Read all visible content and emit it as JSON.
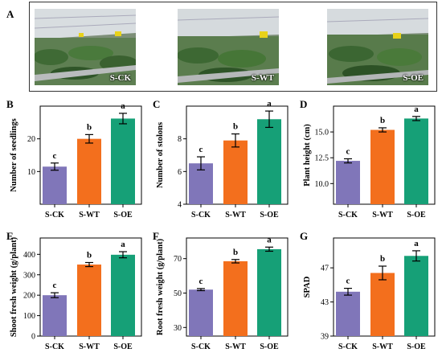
{
  "panel_a": {
    "letter": "A",
    "photos": [
      {
        "label": "S-CK"
      },
      {
        "label": "S-WT"
      },
      {
        "label": "S-OE"
      }
    ]
  },
  "colors": {
    "S-CK": "#8076b9",
    "S-WT": "#f36f1d",
    "S-OE": "#16a077"
  },
  "chart_data": [
    {
      "panel": "B",
      "type": "bar",
      "categories": [
        "S-CK",
        "S-WT",
        "S-OE"
      ],
      "values": [
        11.5,
        20.0,
        26.2
      ],
      "errors": [
        1.1,
        1.3,
        1.6
      ],
      "letters": [
        "c",
        "b",
        "a"
      ],
      "ylabel": "Number of seedlings",
      "ylim": [
        0,
        30
      ],
      "yticks": [
        10,
        20
      ]
    },
    {
      "panel": "C",
      "type": "bar",
      "categories": [
        "S-CK",
        "S-WT",
        "S-OE"
      ],
      "values": [
        6.5,
        7.9,
        9.2
      ],
      "errors": [
        0.4,
        0.4,
        0.5
      ],
      "letters": [
        "c",
        "b",
        "a"
      ],
      "ylabel": "Number of stolons",
      "ylim": [
        4,
        10
      ],
      "yticks": [
        4,
        6,
        8
      ]
    },
    {
      "panel": "D",
      "type": "bar",
      "categories": [
        "S-CK",
        "S-WT",
        "S-OE"
      ],
      "values": [
        12.2,
        15.2,
        16.3
      ],
      "errors": [
        0.2,
        0.2,
        0.2
      ],
      "letters": [
        "c",
        "b",
        "a"
      ],
      "ylabel": "Plant height (cm)",
      "ylim": [
        8,
        17.5
      ],
      "yticks": [
        "10.0",
        "12.5",
        "15.0"
      ]
    },
    {
      "panel": "E",
      "type": "bar",
      "categories": [
        "S-CK",
        "S-WT",
        "S-OE"
      ],
      "values": [
        200,
        350,
        398
      ],
      "errors": [
        12,
        10,
        15
      ],
      "letters": [
        "c",
        "b",
        "a"
      ],
      "ylabel": "Shoot fresh weight (g/plant)",
      "ylim": [
        0,
        480
      ],
      "yticks": [
        0,
        100,
        200,
        300,
        400
      ]
    },
    {
      "panel": "F",
      "type": "bar",
      "categories": [
        "S-CK",
        "S-WT",
        "S-OE"
      ],
      "values": [
        52,
        68.5,
        75.5
      ],
      "errors": [
        0.6,
        1.0,
        1.2
      ],
      "letters": [
        "c",
        "b",
        "a"
      ],
      "ylabel": "Root fresh weight (g/plant)",
      "ylim": [
        25,
        82
      ],
      "yticks": [
        30,
        50,
        70
      ]
    },
    {
      "panel": "G",
      "type": "bar",
      "categories": [
        "S-CK",
        "S-WT",
        "S-OE"
      ],
      "values": [
        44.2,
        46.4,
        48.4
      ],
      "errors": [
        0.4,
        0.8,
        0.6
      ],
      "letters": [
        "c",
        "b",
        "a"
      ],
      "ylabel": "SPAD",
      "ylim": [
        39,
        50.5
      ],
      "yticks": [
        39,
        43,
        47
      ]
    }
  ]
}
